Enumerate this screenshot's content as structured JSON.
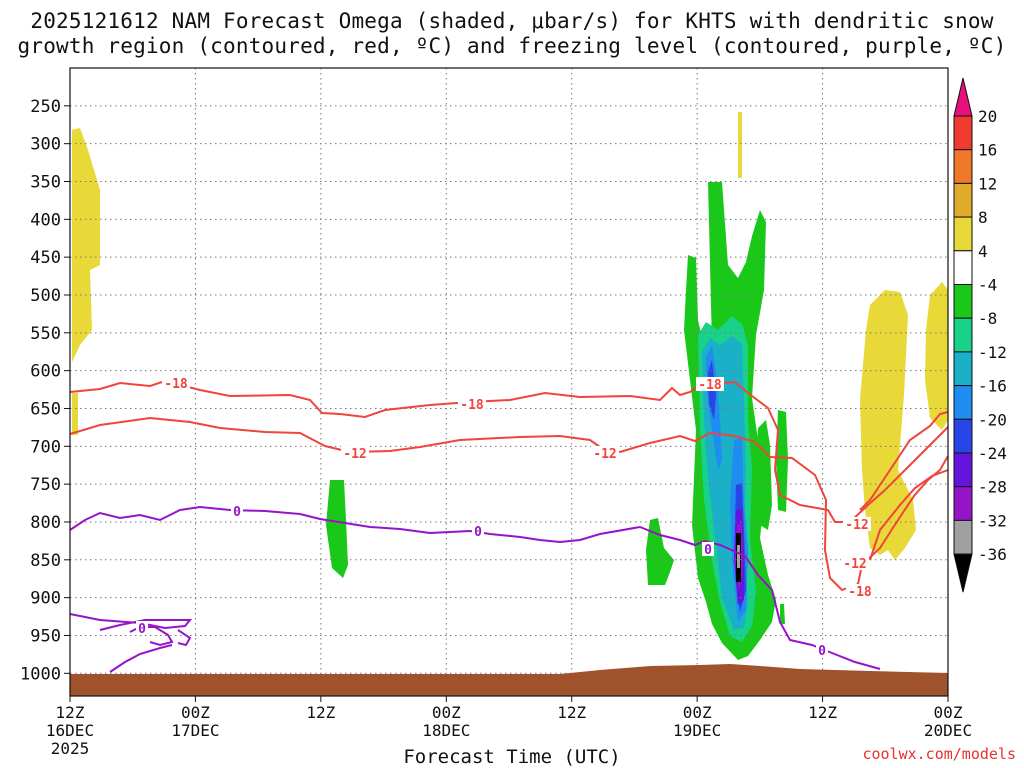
{
  "header": {
    "title_line1": "2025121612 NAM Forecast Omega (shaded, μbar/s) for KHTS with dendritic snow",
    "title_line2": "growth region (contoured, red, ºC) and freezing level (contoured, purple, ºC)"
  },
  "footer": {
    "xlabel": "Forecast Time (UTC)",
    "credit": "coolwx.com/models"
  },
  "chart_data": {
    "type": "heatmap",
    "y_axis": {
      "quantity": "pressure",
      "unit": "hPa",
      "ticks": [
        250,
        300,
        350,
        400,
        450,
        500,
        550,
        600,
        650,
        700,
        750,
        800,
        850,
        900,
        950,
        1000
      ],
      "range": [
        200,
        1030
      ],
      "inverted": true
    },
    "x_axis": {
      "range_hours": [
        0,
        84
      ],
      "ticks": [
        {
          "h": 0,
          "line1": "12Z",
          "line2": "16DEC",
          "line3": "2025"
        },
        {
          "h": 12,
          "line1": "00Z",
          "line2": "17DEC",
          "line3": ""
        },
        {
          "h": 24,
          "line1": "12Z",
          "line2": "",
          "line3": ""
        },
        {
          "h": 36,
          "line1": "00Z",
          "line2": "18DEC",
          "line3": ""
        },
        {
          "h": 48,
          "line1": "12Z",
          "line2": "",
          "line3": ""
        },
        {
          "h": 60,
          "line1": "00Z",
          "line2": "19DEC",
          "line3": ""
        },
        {
          "h": 72,
          "line1": "12Z",
          "line2": "",
          "line3": ""
        },
        {
          "h": 84,
          "line1": "00Z",
          "line2": "20DEC",
          "line3": ""
        }
      ]
    },
    "grid": true,
    "colorbar": {
      "position": "right",
      "labels": [
        "20",
        "16",
        "12",
        "8",
        "4",
        "-4",
        "-8",
        "-12",
        "-16",
        "-20",
        "-24",
        "-28",
        "-32",
        "-36"
      ],
      "colors": [
        "#e8107a",
        "#f03c30",
        "#f0782a",
        "#e0aa2a",
        "#e8d838",
        "#ffffff",
        "#19c819",
        "#19d28a",
        "#1ab0c8",
        "#1e8cf0",
        "#2846e6",
        "#6414dc",
        "#9614c8",
        "#a0a0a0",
        "#000000"
      ]
    },
    "contours": {
      "red_labels": [
        "-18",
        "-18",
        "-18",
        "-12",
        "-12",
        "-12",
        "-18",
        "-12",
        "-12"
      ],
      "purple_labels": [
        "0",
        "0",
        "0",
        "0",
        "0"
      ],
      "red_color": "#f0443c",
      "purple_color": "#9614c8",
      "terrain_color": "#a0522d"
    }
  }
}
